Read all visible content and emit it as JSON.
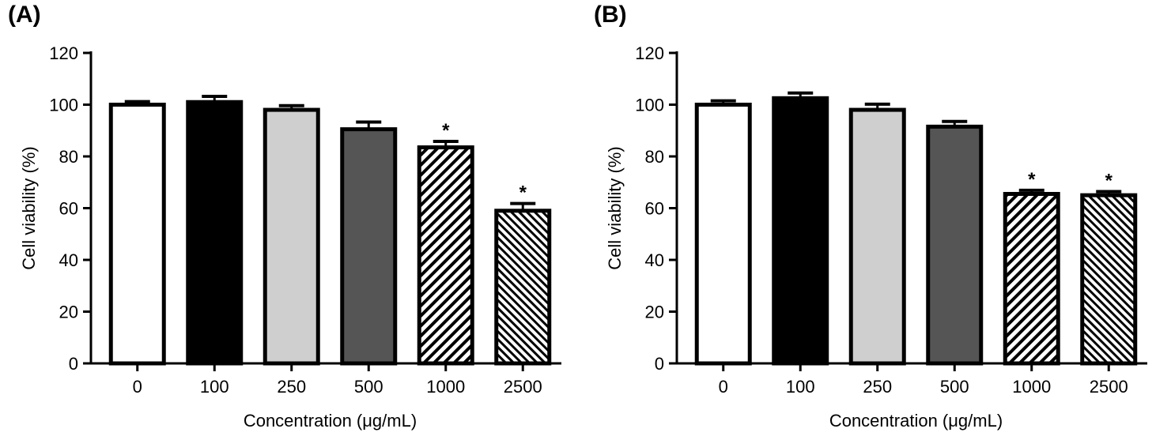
{
  "chart_data": [
    {
      "type": "bar",
      "panel_label": "(A)",
      "categories": [
        "0",
        "100",
        "250",
        "500",
        "1000",
        "2500"
      ],
      "values": [
        100,
        101,
        98,
        90.5,
        83.5,
        59
      ],
      "errors": [
        1.2,
        2.2,
        1.6,
        2.8,
        2.3,
        2.8
      ],
      "significance": [
        "",
        "",
        "",
        "",
        "*",
        "*"
      ],
      "fills": [
        "white",
        "black",
        "light-gray",
        "dark-gray",
        "hatch",
        "hatch-dense"
      ],
      "colors": {
        "white": "#ffffff",
        "black": "#000000",
        "light-gray": "#cfcfcf",
        "dark-gray": "#555555"
      },
      "xlabel": "Concentration (μg/mL)",
      "ylabel": "Cell viability (%)",
      "ylim": [
        0,
        120
      ],
      "yticks": [
        "0",
        "20",
        "40",
        "60",
        "80",
        "100",
        "120"
      ],
      "grid": false
    },
    {
      "type": "bar",
      "panel_label": "(B)",
      "categories": [
        "0",
        "100",
        "250",
        "500",
        "1000",
        "2500"
      ],
      "values": [
        100,
        102.5,
        98,
        91.5,
        65.5,
        65
      ],
      "errors": [
        1.5,
        2.0,
        2.2,
        2.0,
        1.4,
        1.4
      ],
      "significance": [
        "",
        "",
        "",
        "",
        "*",
        "*"
      ],
      "fills": [
        "white",
        "black",
        "light-gray",
        "dark-gray",
        "hatch",
        "hatch-dense"
      ],
      "colors": {
        "white": "#ffffff",
        "black": "#000000",
        "light-gray": "#cfcfcf",
        "dark-gray": "#555555"
      },
      "xlabel": "Concentration (μg/mL)",
      "ylabel": "Cell viability (%)",
      "ylim": [
        0,
        120
      ],
      "yticks": [
        "0",
        "20",
        "40",
        "60",
        "80",
        "100",
        "120"
      ],
      "grid": false
    }
  ]
}
